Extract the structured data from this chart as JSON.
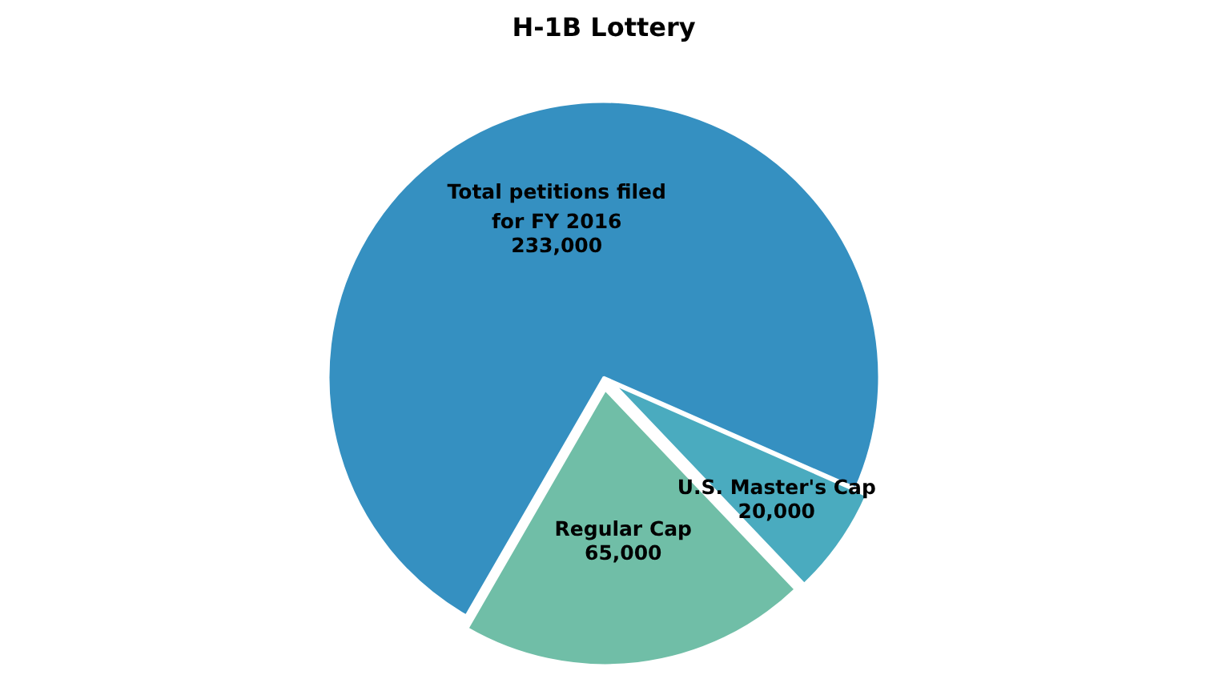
{
  "chart_data": {
    "type": "pie",
    "title": "H-1B Lottery",
    "categories": [
      "Total petitions filed\nfor FY 2016",
      "U.S. Master's Cap",
      "Regular Cap"
    ],
    "values": [
      233000,
      20000,
      65000
    ],
    "value_labels": [
      "233,000",
      "20,000",
      "65,000"
    ],
    "colors": [
      "#3590c1",
      "#4aabbf",
      "#70bea7"
    ]
  }
}
